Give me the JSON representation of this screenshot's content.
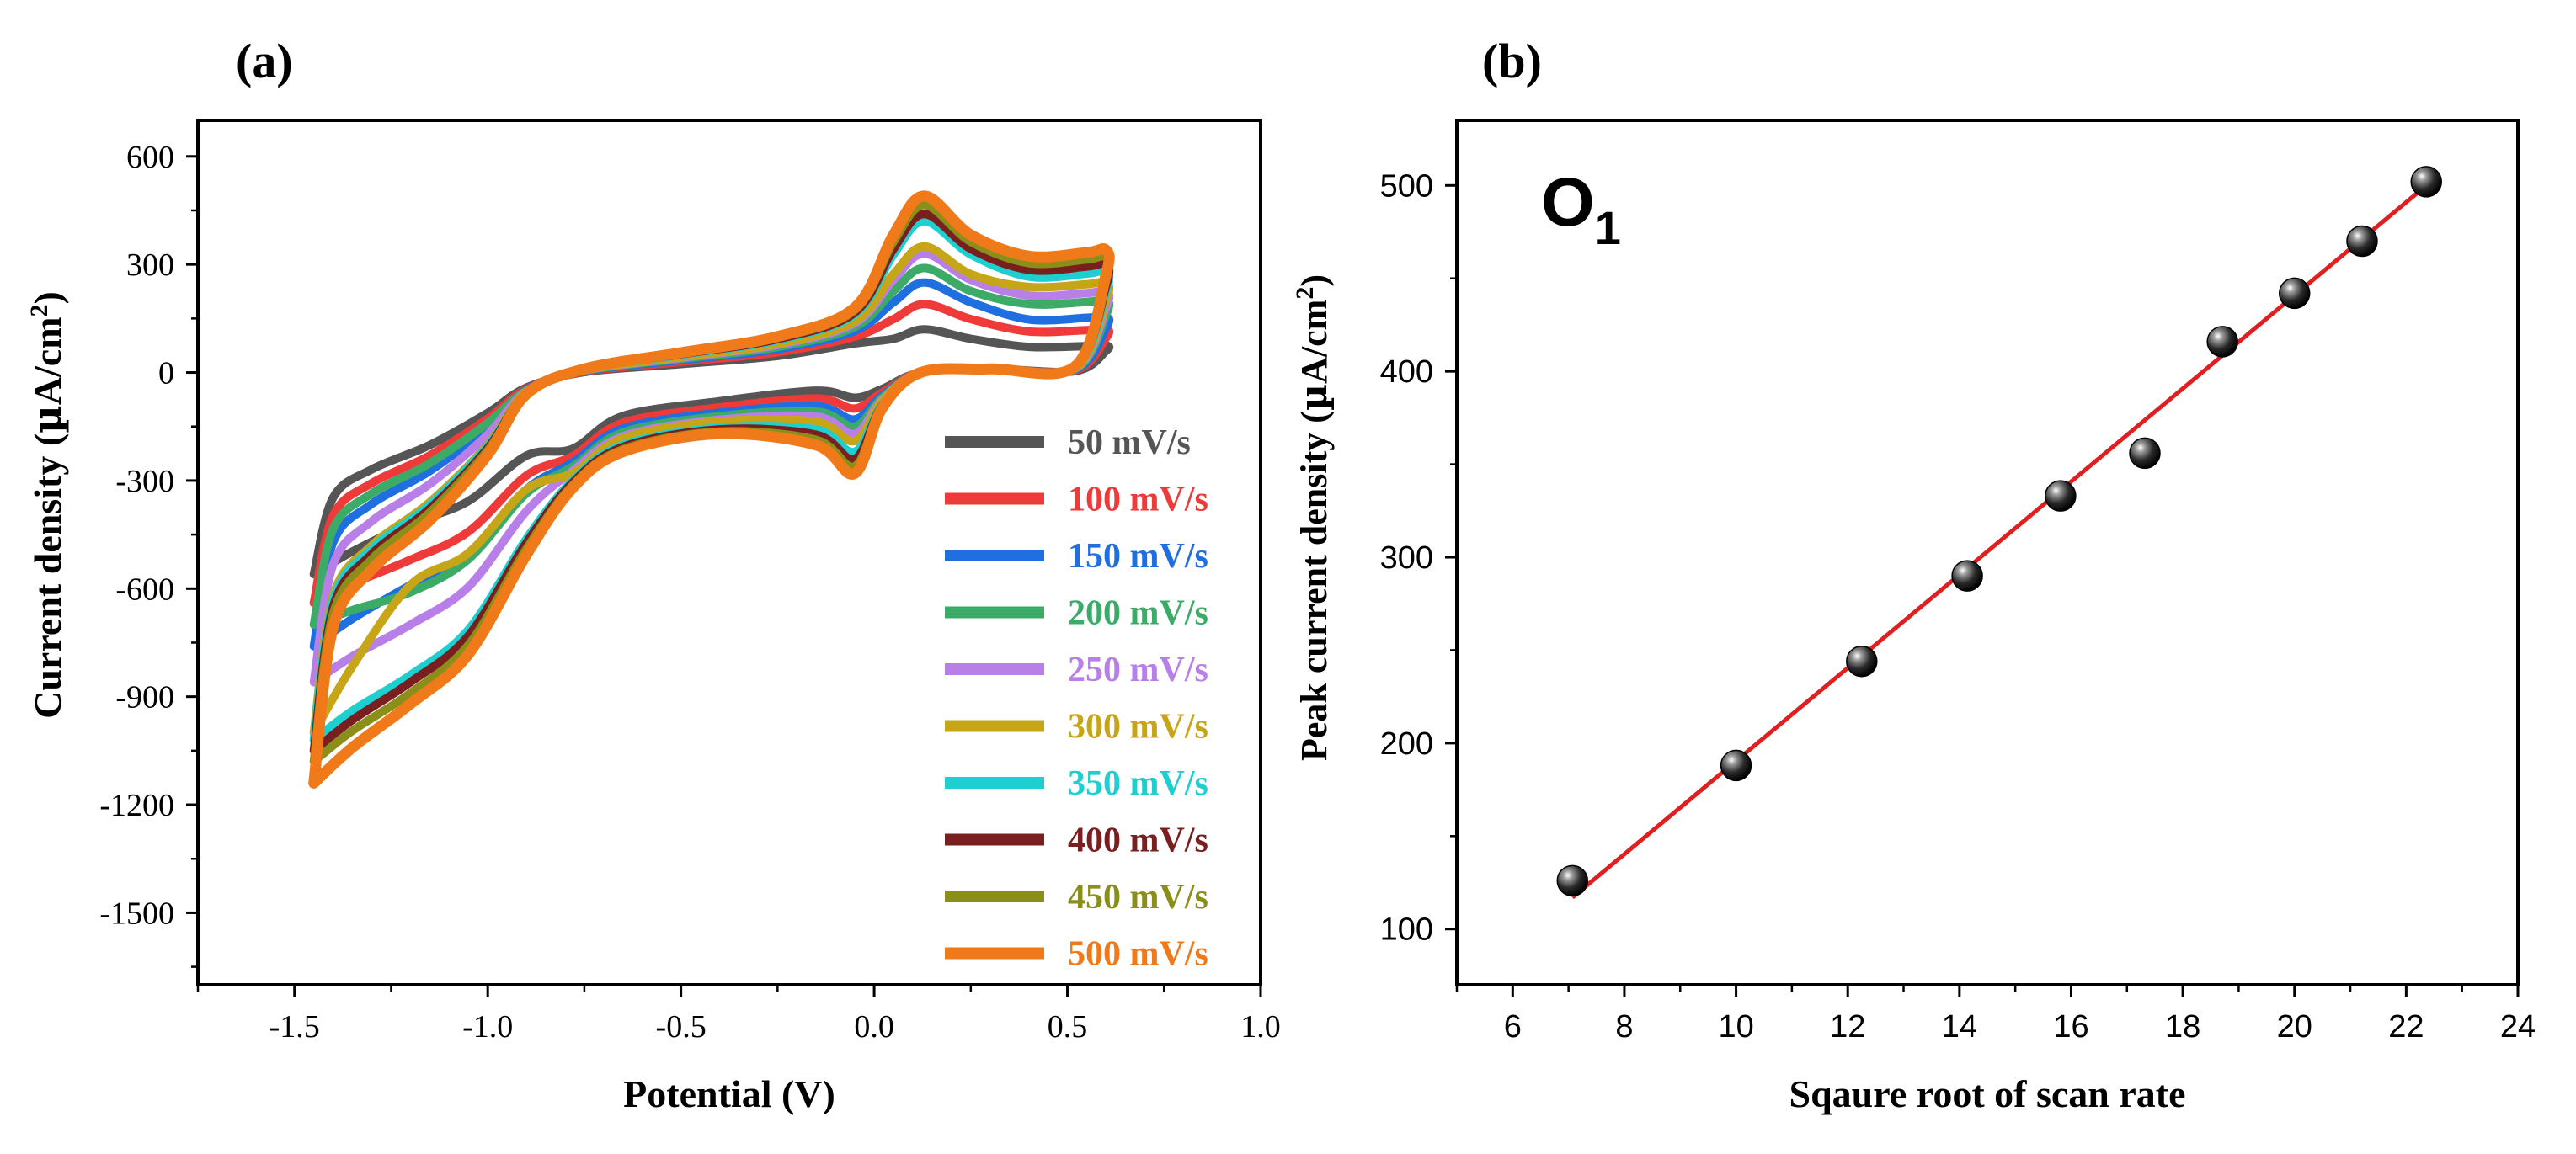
{
  "chart_data": [
    {
      "panel_label": "(a)",
      "type": "line",
      "title": "",
      "xlabel": "Potential (V)",
      "ylabel": "Current density (µA/cm²)",
      "ylabel_parts": {
        "main": "Current density (",
        "mu": "µ",
        "unit": "A/cm",
        "sup": "2",
        "close": ")"
      },
      "xlim": [
        -1.75,
        1.0
      ],
      "ylim": [
        -1700,
        700
      ],
      "xticks": [
        -1.5,
        -1.0,
        -0.5,
        0.0,
        0.5,
        1.0
      ],
      "xtick_labels": [
        "-1.5",
        "-1.0",
        "-0.5",
        "0.0",
        "0.5",
        "1.0"
      ],
      "yticks": [
        600,
        300,
        0,
        -300,
        -600,
        -900,
        -1200,
        -1500
      ],
      "ytick_labels": [
        "600",
        "300",
        "0",
        "-300",
        "-600",
        "-900",
        "-1200",
        "-1500"
      ],
      "legend_position": "bottom-right",
      "series": [
        {
          "name": "50 mV/s",
          "color": "#555555",
          "anodic_peak": 120,
          "cathodic_low": -70,
          "start_current": -560,
          "end_current": 75,
          "reduction_shoulder": -420
        },
        {
          "name": "100 mV/s",
          "color": "#ef3a3a",
          "anodic_peak": 190,
          "cathodic_low": -100,
          "start_current": -640,
          "end_current": 120,
          "reduction_shoulder": -520
        },
        {
          "name": "150 mV/s",
          "color": "#1f6fe0",
          "anodic_peak": 250,
          "cathodic_low": -130,
          "start_current": -760,
          "end_current": 155,
          "reduction_shoulder": -590
        },
        {
          "name": "200 mV/s",
          "color": "#3cab68",
          "anodic_peak": 290,
          "cathodic_low": -150,
          "start_current": -700,
          "end_current": 200,
          "reduction_shoulder": -610
        },
        {
          "name": "250 mV/s",
          "color": "#b87fe8",
          "anodic_peak": 330,
          "cathodic_low": -170,
          "start_current": -860,
          "end_current": 225,
          "reduction_shoulder": -700
        },
        {
          "name": "300 mV/s",
          "color": "#c7a518",
          "anodic_peak": 350,
          "cathodic_low": -190,
          "start_current": -1000,
          "end_current": 250,
          "reduction_shoulder": -590
        },
        {
          "name": "350 mV/s",
          "color": "#1fcfcf",
          "anodic_peak": 420,
          "cathodic_low": -220,
          "start_current": -1020,
          "end_current": 280,
          "reduction_shoulder": -840
        },
        {
          "name": "400 mV/s",
          "color": "#7a1f1f",
          "anodic_peak": 440,
          "cathodic_low": -240,
          "start_current": -1050,
          "end_current": 300,
          "reduction_shoulder": -860
        },
        {
          "name": "450 mV/s",
          "color": "#8a8f1a",
          "anodic_peak": 465,
          "cathodic_low": -260,
          "start_current": -1080,
          "end_current": 320,
          "reduction_shoulder": -890
        },
        {
          "name": "500 mV/s",
          "color": "#f07a1a",
          "anodic_peak": 490,
          "cathodic_low": -280,
          "start_current": -1140,
          "end_current": 340,
          "reduction_shoulder": -920
        }
      ]
    },
    {
      "panel_label": "(b)",
      "type": "scatter",
      "title": "",
      "annotation": {
        "main": "O",
        "sub": "1"
      },
      "xlabel": "Sqaure root of scan rate",
      "ylabel": "Peak current density (µA/cm²)",
      "ylabel_parts": {
        "main": "Peak current density (",
        "mu": "µ",
        "unit": "A/cm",
        "sup": "2",
        "close": ")"
      },
      "xlim": [
        5,
        24
      ],
      "ylim": [
        70,
        535
      ],
      "xticks": [
        6,
        8,
        10,
        12,
        14,
        16,
        18,
        20,
        22,
        24
      ],
      "xtick_labels": [
        "6",
        "8",
        "10",
        "12",
        "14",
        "16",
        "18",
        "20",
        "22",
        "24"
      ],
      "yticks": [
        100,
        200,
        300,
        400,
        500
      ],
      "ytick_labels": [
        "100",
        "200",
        "300",
        "400",
        "500"
      ],
      "x": [
        7.07,
        10.0,
        12.25,
        14.14,
        15.81,
        17.32,
        18.71,
        20.0,
        21.21,
        22.36
      ],
      "y": [
        126,
        188,
        244,
        290,
        333,
        356,
        416,
        442,
        470,
        502
      ],
      "fit_line": {
        "color": "#e02020",
        "x": [
          7.07,
          22.36
        ],
        "y": [
          117,
          500
        ]
      },
      "marker_color": "#1a1a1a"
    }
  ]
}
